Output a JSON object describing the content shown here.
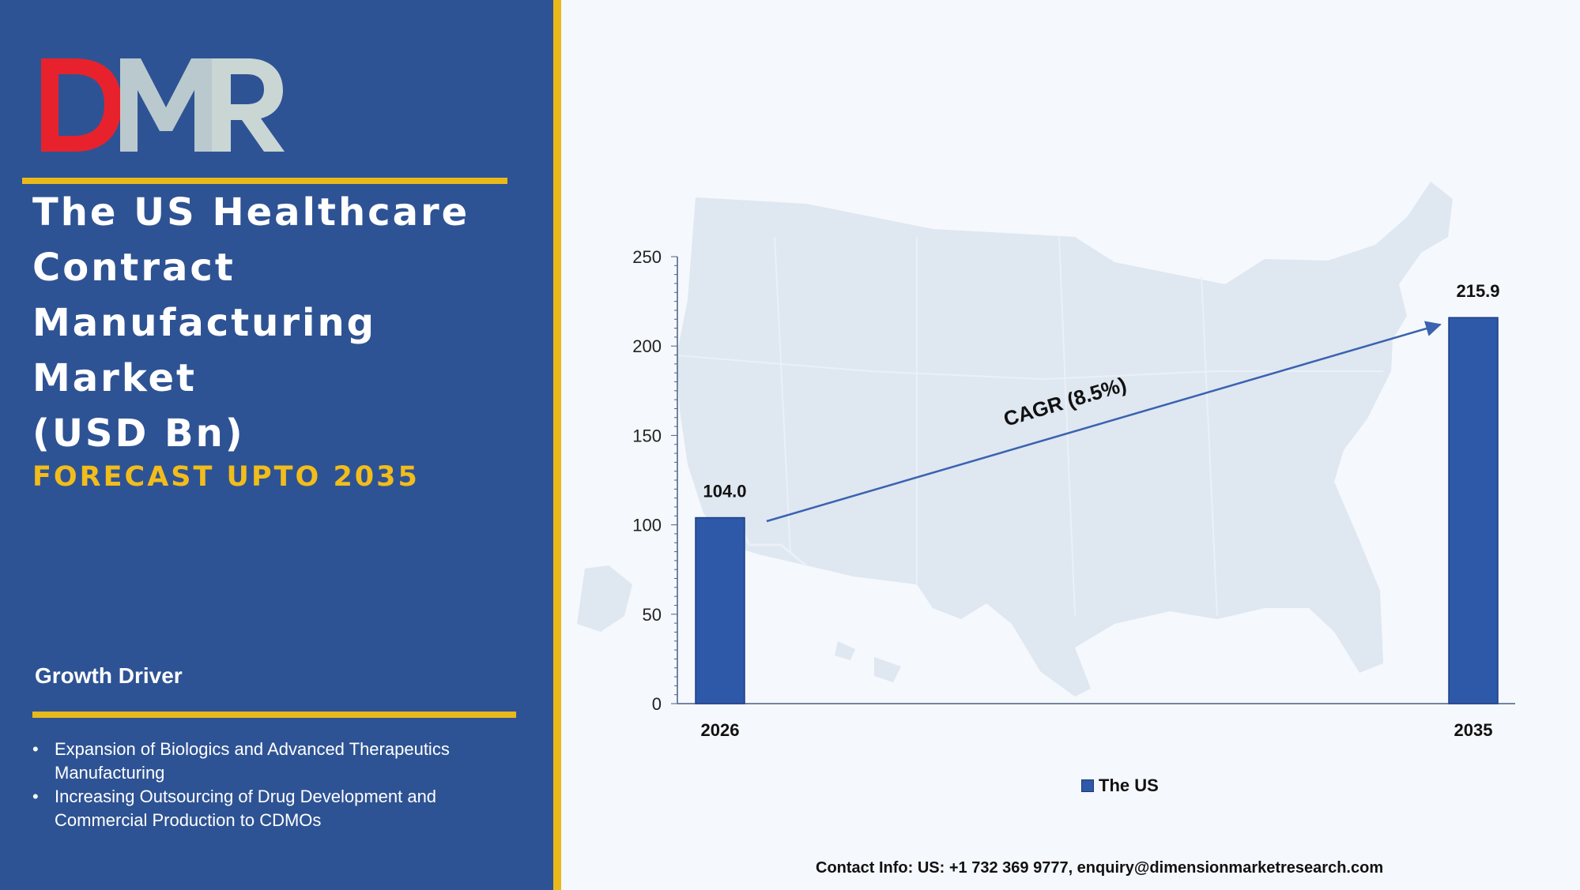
{
  "logo": {
    "text": "DMR"
  },
  "title_lines": [
    "The US Healthcare",
    "Contract",
    "Manufacturing",
    "Market",
    "(USD Bn)"
  ],
  "forecast": "FORECAST UPTO 2035",
  "growth_driver": {
    "heading": "Growth Driver",
    "items": [
      {
        "bullet": "•",
        "line1": "Expansion of Biologics and Advanced Therapeutics",
        "line2": "Manufacturing"
      },
      {
        "bullet": "•",
        "line1": "Increasing Outsourcing of Drug Development and",
        "line2": "Commercial Production to CDMOs"
      }
    ]
  },
  "colors": {
    "panel": "#2e5394",
    "accent": "#e9b91c",
    "bar": "#2e58a8",
    "logo_red": "#e8222c",
    "logo_gray": "#c9d6d4"
  },
  "chart_data": {
    "type": "bar",
    "categories": [
      "2026",
      "2035"
    ],
    "series": [
      {
        "name": "The US",
        "values": [
          104.0,
          215.9
        ]
      }
    ],
    "data_labels": [
      "104.0",
      "215.9"
    ],
    "ylim": [
      0,
      250
    ],
    "yticks": [
      0,
      50,
      100,
      150,
      200,
      250
    ],
    "annotation": "CAGR (8.5%)",
    "legend": "bottom",
    "grid": false,
    "background": "US map silhouette"
  },
  "contact": "Contact Info: US: +1 732 369 9777, enquiry@dimensionmarketresearch.com"
}
